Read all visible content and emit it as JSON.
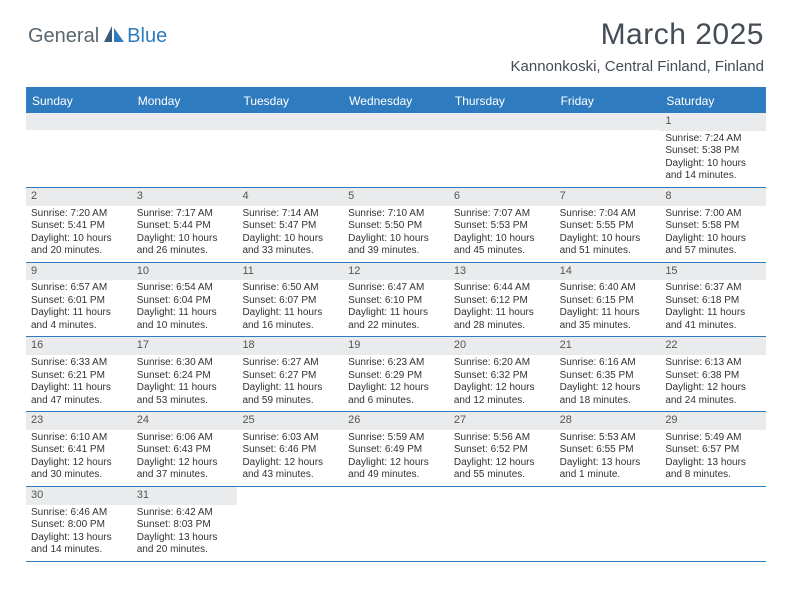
{
  "logo": {
    "text1": "General",
    "text2": "Blue"
  },
  "title": "March 2025",
  "location": "Kannonkoski, Central Finland, Finland",
  "day_headers": [
    "Sunday",
    "Monday",
    "Tuesday",
    "Wednesday",
    "Thursday",
    "Friday",
    "Saturday"
  ],
  "colors": {
    "brand_blue": "#2f7bbf",
    "header_text": "#ffffff",
    "daynum_bg": "#e9ebec",
    "title_color": "#444c55",
    "logo_gray": "#5a6770"
  },
  "weeks": [
    [
      {
        "empty": true
      },
      {
        "empty": true
      },
      {
        "empty": true
      },
      {
        "empty": true
      },
      {
        "empty": true
      },
      {
        "empty": true
      },
      {
        "n": "1",
        "sunrise": "Sunrise: 7:24 AM",
        "sunset": "Sunset: 5:38 PM",
        "day1": "Daylight: 10 hours",
        "day2": "and 14 minutes."
      }
    ],
    [
      {
        "n": "2",
        "sunrise": "Sunrise: 7:20 AM",
        "sunset": "Sunset: 5:41 PM",
        "day1": "Daylight: 10 hours",
        "day2": "and 20 minutes."
      },
      {
        "n": "3",
        "sunrise": "Sunrise: 7:17 AM",
        "sunset": "Sunset: 5:44 PM",
        "day1": "Daylight: 10 hours",
        "day2": "and 26 minutes."
      },
      {
        "n": "4",
        "sunrise": "Sunrise: 7:14 AM",
        "sunset": "Sunset: 5:47 PM",
        "day1": "Daylight: 10 hours",
        "day2": "and 33 minutes."
      },
      {
        "n": "5",
        "sunrise": "Sunrise: 7:10 AM",
        "sunset": "Sunset: 5:50 PM",
        "day1": "Daylight: 10 hours",
        "day2": "and 39 minutes."
      },
      {
        "n": "6",
        "sunrise": "Sunrise: 7:07 AM",
        "sunset": "Sunset: 5:53 PM",
        "day1": "Daylight: 10 hours",
        "day2": "and 45 minutes."
      },
      {
        "n": "7",
        "sunrise": "Sunrise: 7:04 AM",
        "sunset": "Sunset: 5:55 PM",
        "day1": "Daylight: 10 hours",
        "day2": "and 51 minutes."
      },
      {
        "n": "8",
        "sunrise": "Sunrise: 7:00 AM",
        "sunset": "Sunset: 5:58 PM",
        "day1": "Daylight: 10 hours",
        "day2": "and 57 minutes."
      }
    ],
    [
      {
        "n": "9",
        "sunrise": "Sunrise: 6:57 AM",
        "sunset": "Sunset: 6:01 PM",
        "day1": "Daylight: 11 hours",
        "day2": "and 4 minutes."
      },
      {
        "n": "10",
        "sunrise": "Sunrise: 6:54 AM",
        "sunset": "Sunset: 6:04 PM",
        "day1": "Daylight: 11 hours",
        "day2": "and 10 minutes."
      },
      {
        "n": "11",
        "sunrise": "Sunrise: 6:50 AM",
        "sunset": "Sunset: 6:07 PM",
        "day1": "Daylight: 11 hours",
        "day2": "and 16 minutes."
      },
      {
        "n": "12",
        "sunrise": "Sunrise: 6:47 AM",
        "sunset": "Sunset: 6:10 PM",
        "day1": "Daylight: 11 hours",
        "day2": "and 22 minutes."
      },
      {
        "n": "13",
        "sunrise": "Sunrise: 6:44 AM",
        "sunset": "Sunset: 6:12 PM",
        "day1": "Daylight: 11 hours",
        "day2": "and 28 minutes."
      },
      {
        "n": "14",
        "sunrise": "Sunrise: 6:40 AM",
        "sunset": "Sunset: 6:15 PM",
        "day1": "Daylight: 11 hours",
        "day2": "and 35 minutes."
      },
      {
        "n": "15",
        "sunrise": "Sunrise: 6:37 AM",
        "sunset": "Sunset: 6:18 PM",
        "day1": "Daylight: 11 hours",
        "day2": "and 41 minutes."
      }
    ],
    [
      {
        "n": "16",
        "sunrise": "Sunrise: 6:33 AM",
        "sunset": "Sunset: 6:21 PM",
        "day1": "Daylight: 11 hours",
        "day2": "and 47 minutes."
      },
      {
        "n": "17",
        "sunrise": "Sunrise: 6:30 AM",
        "sunset": "Sunset: 6:24 PM",
        "day1": "Daylight: 11 hours",
        "day2": "and 53 minutes."
      },
      {
        "n": "18",
        "sunrise": "Sunrise: 6:27 AM",
        "sunset": "Sunset: 6:27 PM",
        "day1": "Daylight: 11 hours",
        "day2": "and 59 minutes."
      },
      {
        "n": "19",
        "sunrise": "Sunrise: 6:23 AM",
        "sunset": "Sunset: 6:29 PM",
        "day1": "Daylight: 12 hours",
        "day2": "and 6 minutes."
      },
      {
        "n": "20",
        "sunrise": "Sunrise: 6:20 AM",
        "sunset": "Sunset: 6:32 PM",
        "day1": "Daylight: 12 hours",
        "day2": "and 12 minutes."
      },
      {
        "n": "21",
        "sunrise": "Sunrise: 6:16 AM",
        "sunset": "Sunset: 6:35 PM",
        "day1": "Daylight: 12 hours",
        "day2": "and 18 minutes."
      },
      {
        "n": "22",
        "sunrise": "Sunrise: 6:13 AM",
        "sunset": "Sunset: 6:38 PM",
        "day1": "Daylight: 12 hours",
        "day2": "and 24 minutes."
      }
    ],
    [
      {
        "n": "23",
        "sunrise": "Sunrise: 6:10 AM",
        "sunset": "Sunset: 6:41 PM",
        "day1": "Daylight: 12 hours",
        "day2": "and 30 minutes."
      },
      {
        "n": "24",
        "sunrise": "Sunrise: 6:06 AM",
        "sunset": "Sunset: 6:43 PM",
        "day1": "Daylight: 12 hours",
        "day2": "and 37 minutes."
      },
      {
        "n": "25",
        "sunrise": "Sunrise: 6:03 AM",
        "sunset": "Sunset: 6:46 PM",
        "day1": "Daylight: 12 hours",
        "day2": "and 43 minutes."
      },
      {
        "n": "26",
        "sunrise": "Sunrise: 5:59 AM",
        "sunset": "Sunset: 6:49 PM",
        "day1": "Daylight: 12 hours",
        "day2": "and 49 minutes."
      },
      {
        "n": "27",
        "sunrise": "Sunrise: 5:56 AM",
        "sunset": "Sunset: 6:52 PM",
        "day1": "Daylight: 12 hours",
        "day2": "and 55 minutes."
      },
      {
        "n": "28",
        "sunrise": "Sunrise: 5:53 AM",
        "sunset": "Sunset: 6:55 PM",
        "day1": "Daylight: 13 hours",
        "day2": "and 1 minute."
      },
      {
        "n": "29",
        "sunrise": "Sunrise: 5:49 AM",
        "sunset": "Sunset: 6:57 PM",
        "day1": "Daylight: 13 hours",
        "day2": "and 8 minutes."
      }
    ],
    [
      {
        "n": "30",
        "sunrise": "Sunrise: 6:46 AM",
        "sunset": "Sunset: 8:00 PM",
        "day1": "Daylight: 13 hours",
        "day2": "and 14 minutes."
      },
      {
        "n": "31",
        "sunrise": "Sunrise: 6:42 AM",
        "sunset": "Sunset: 8:03 PM",
        "day1": "Daylight: 13 hours",
        "day2": "and 20 minutes."
      },
      {
        "empty": true
      },
      {
        "empty": true
      },
      {
        "empty": true
      },
      {
        "empty": true
      },
      {
        "empty": true
      }
    ]
  ]
}
